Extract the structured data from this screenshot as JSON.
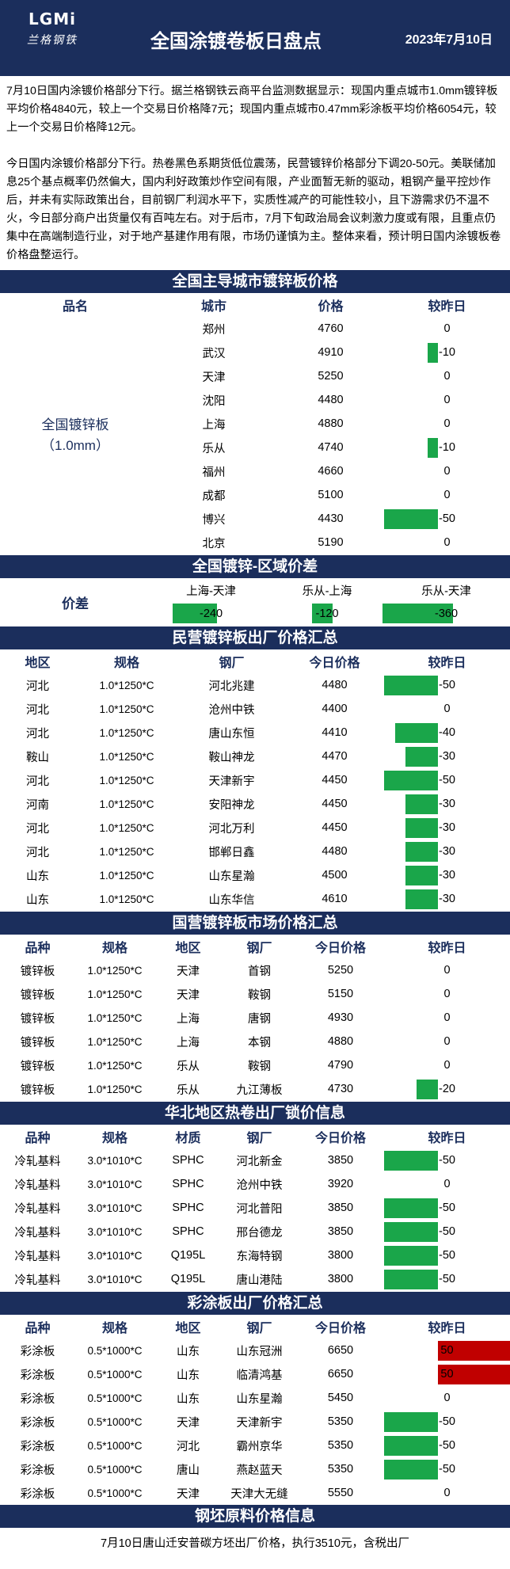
{
  "header": {
    "logo_mark": "LGMi",
    "logo_text": "兰格钢铁",
    "title": "全国涂镀卷板日盘点",
    "date": "2023年7月10日"
  },
  "intro": {
    "p1": "7月10日国内涂镀价格部分下行。据兰格钢铁云商平台监测数据显示：现国内重点城市1.0mm镀锌板平均价格4840元，较上一个交易日价格降7元；现国内重点城市0.47mm彩涂板平均价格6054元，较上一个交易日价格降12元。",
    "p2": "今日国内涂镀价格部分下行。热卷黑色系期货低位震荡，民营镀锌价格部分下调20-50元。美联储加息25个基点概率仍然偏大，国内利好政策炒作空间有限，产业面暂无新的驱动，粗钢产量平控炒作后，并未有实际政策出台，目前钢厂利润水平下，实质性减产的可能性较小，且下游需求仍不温不火，今日部分商户出货量仅有百吨左右。对于后市，7月下旬政治局会议刺激力度或有限，且重点仍集中在高端制造行业，对于地产基建作用有限，市场仍谨慎为主。整体来看，预计明日国内涂镀板卷价格盘整运行。"
  },
  "sec1": {
    "title": "全国主导城市镀锌板价格",
    "headers": [
      "品名",
      "城市",
      "价格",
      "较昨日"
    ],
    "product_line1": "全国镀锌板",
    "product_line2": "（1.0mm）",
    "rows": [
      {
        "city": "郑州",
        "price": "4760",
        "chg": "0",
        "v": 0
      },
      {
        "city": "武汉",
        "price": "4910",
        "chg": "-10",
        "v": -10
      },
      {
        "city": "天津",
        "price": "5250",
        "chg": "0",
        "v": 0
      },
      {
        "city": "沈阳",
        "price": "4480",
        "chg": "0",
        "v": 0
      },
      {
        "city": "上海",
        "price": "4880",
        "chg": "0",
        "v": 0
      },
      {
        "city": "乐从",
        "price": "4740",
        "chg": "-10",
        "v": -10
      },
      {
        "city": "福州",
        "price": "4660",
        "chg": "0",
        "v": 0
      },
      {
        "city": "成都",
        "price": "5100",
        "chg": "0",
        "v": 0
      },
      {
        "city": "博兴",
        "price": "4430",
        "chg": "-50",
        "v": -50
      },
      {
        "city": "北京",
        "price": "5190",
        "chg": "0",
        "v": 0
      }
    ]
  },
  "sec2": {
    "title": "全国镀锌-区域价差",
    "label": "价差",
    "headers": [
      "上海-天津",
      "乐从-上海",
      "乐从-天津"
    ],
    "values": [
      {
        "text": "-240",
        "v": -240
      },
      {
        "text": "-120",
        "v": -120
      },
      {
        "text": "-360",
        "v": -360
      }
    ]
  },
  "sec3": {
    "title": "民营镀锌板出厂价格汇总",
    "headers": [
      "地区",
      "规格",
      "钢厂",
      "今日价格",
      "较昨日"
    ],
    "rows": [
      {
        "region": "河北",
        "spec": "1.0*1250*C",
        "mill": "河北兆建",
        "price": "4480",
        "chg": "-50",
        "v": -50
      },
      {
        "region": "河北",
        "spec": "1.0*1250*C",
        "mill": "沧州中铁",
        "price": "4400",
        "chg": "0",
        "v": 0
      },
      {
        "region": "河北",
        "spec": "1.0*1250*C",
        "mill": "唐山东恒",
        "price": "4410",
        "chg": "-40",
        "v": -40
      },
      {
        "region": "鞍山",
        "spec": "1.0*1250*C",
        "mill": "鞍山神龙",
        "price": "4470",
        "chg": "-30",
        "v": -30
      },
      {
        "region": "河北",
        "spec": "1.0*1250*C",
        "mill": "天津新宇",
        "price": "4450",
        "chg": "-50",
        "v": -50
      },
      {
        "region": "河南",
        "spec": "1.0*1250*C",
        "mill": "安阳神龙",
        "price": "4450",
        "chg": "-30",
        "v": -30
      },
      {
        "region": "河北",
        "spec": "1.0*1250*C",
        "mill": "河北万利",
        "price": "4450",
        "chg": "-30",
        "v": -30
      },
      {
        "region": "河北",
        "spec": "1.0*1250*C",
        "mill": "邯郸日鑫",
        "price": "4480",
        "chg": "-30",
        "v": -30
      },
      {
        "region": "山东",
        "spec": "1.0*1250*C",
        "mill": "山东星瀚",
        "price": "4500",
        "chg": "-30",
        "v": -30
      },
      {
        "region": "山东",
        "spec": "1.0*1250*C",
        "mill": "山东华信",
        "price": "4610",
        "chg": "-30",
        "v": -30
      }
    ]
  },
  "sec4": {
    "title": "国营镀锌板市场价格汇总",
    "headers": [
      "品种",
      "规格",
      "地区",
      "钢厂",
      "今日价格",
      "较昨日"
    ],
    "rows": [
      {
        "type": "镀锌板",
        "spec": "1.0*1250*C",
        "region": "天津",
        "mill": "首钢",
        "price": "5250",
        "chg": "0",
        "v": 0
      },
      {
        "type": "镀锌板",
        "spec": "1.0*1250*C",
        "region": "天津",
        "mill": "鞍钢",
        "price": "5150",
        "chg": "0",
        "v": 0
      },
      {
        "type": "镀锌板",
        "spec": "1.0*1250*C",
        "region": "上海",
        "mill": "唐钢",
        "price": "4930",
        "chg": "0",
        "v": 0
      },
      {
        "type": "镀锌板",
        "spec": "1.0*1250*C",
        "region": "上海",
        "mill": "本钢",
        "price": "4880",
        "chg": "0",
        "v": 0
      },
      {
        "type": "镀锌板",
        "spec": "1.0*1250*C",
        "region": "乐从",
        "mill": "鞍钢",
        "price": "4790",
        "chg": "0",
        "v": 0
      },
      {
        "type": "镀锌板",
        "spec": "1.0*1250*C",
        "region": "乐从",
        "mill": "九江薄板",
        "price": "4730",
        "chg": "-20",
        "v": -20
      }
    ]
  },
  "sec5": {
    "title": "华北地区热卷出厂锁价信息",
    "headers": [
      "品种",
      "规格",
      "材质",
      "钢厂",
      "今日价格",
      "较昨日"
    ],
    "rows": [
      {
        "type": "冷轧基料",
        "spec": "3.0*1010*C",
        "mat": "SPHC",
        "mill": "河北新金",
        "price": "3850",
        "chg": "-50",
        "v": -50
      },
      {
        "type": "冷轧基料",
        "spec": "3.0*1010*C",
        "mat": "SPHC",
        "mill": "沧州中铁",
        "price": "3920",
        "chg": "0",
        "v": 0
      },
      {
        "type": "冷轧基料",
        "spec": "3.0*1010*C",
        "mat": "SPHC",
        "mill": "河北普阳",
        "price": "3850",
        "chg": "-50",
        "v": -50
      },
      {
        "type": "冷轧基料",
        "spec": "3.0*1010*C",
        "mat": "SPHC",
        "mill": "邢台德龙",
        "price": "3850",
        "chg": "-50",
        "v": -50
      },
      {
        "type": "冷轧基料",
        "spec": "3.0*1010*C",
        "mat": "Q195L",
        "mill": "东海特钢",
        "price": "3800",
        "chg": "-50",
        "v": -50
      },
      {
        "type": "冷轧基料",
        "spec": "3.0*1010*C",
        "mat": "Q195L",
        "mill": "唐山港陆",
        "price": "3800",
        "chg": "-50",
        "v": -50
      }
    ]
  },
  "sec6": {
    "title": "彩涂板出厂价格汇总",
    "headers": [
      "品种",
      "规格",
      "地区",
      "钢厂",
      "今日价格",
      "较昨日"
    ],
    "rows": [
      {
        "type": "彩涂板",
        "spec": "0.5*1000*C",
        "region": "山东",
        "mill": "山东冠洲",
        "price": "6650",
        "chg": "50",
        "v": 50
      },
      {
        "type": "彩涂板",
        "spec": "0.5*1000*C",
        "region": "山东",
        "mill": "临清鸿基",
        "price": "6650",
        "chg": "50",
        "v": 50
      },
      {
        "type": "彩涂板",
        "spec": "0.5*1000*C",
        "region": "山东",
        "mill": "山东星瀚",
        "price": "5450",
        "chg": "0",
        "v": 0
      },
      {
        "type": "彩涂板",
        "spec": "0.5*1000*C",
        "region": "天津",
        "mill": "天津新宇",
        "price": "5350",
        "chg": "-50",
        "v": -50
      },
      {
        "type": "彩涂板",
        "spec": "0.5*1000*C",
        "region": "河北",
        "mill": "霸州京华",
        "price": "5350",
        "chg": "-50",
        "v": -50
      },
      {
        "type": "彩涂板",
        "spec": "0.5*1000*C",
        "region": "唐山",
        "mill": "燕赵蓝天",
        "price": "5350",
        "chg": "-50",
        "v": -50
      },
      {
        "type": "彩涂板",
        "spec": "0.5*1000*C",
        "region": "天津",
        "mill": "天津大无缝",
        "price": "5550",
        "chg": "0",
        "v": 0
      }
    ]
  },
  "sec7": {
    "title": "钢坯原料价格信息",
    "note": "7月10日唐山迁安普碳方坯出厂价格，执行3510元，含税出厂"
  },
  "colors": {
    "navy": "#1b2e5c",
    "down": "#1aa64a",
    "up": "#c00000"
  }
}
